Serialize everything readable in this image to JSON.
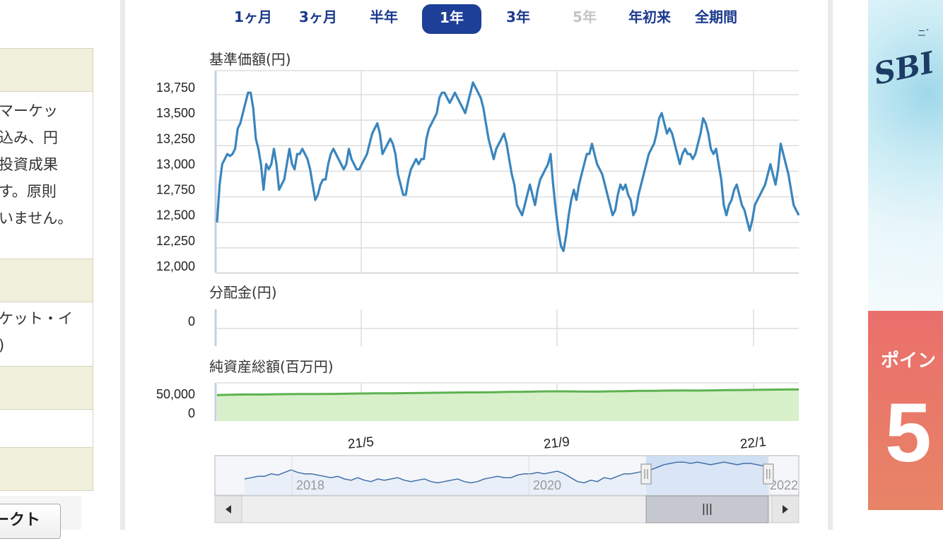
{
  "left_panel": {
    "text_lines": [
      "マーケッ",
      "込み、円",
      "投資成果",
      "す。原則",
      "いません。"
    ],
    "row2_lines": [
      "ケット・イ",
      ")"
    ],
    "button_label": "ークト"
  },
  "periods": [
    {
      "label": "1ヶ月",
      "state": "normal"
    },
    {
      "label": "3ヶ月",
      "state": "normal"
    },
    {
      "label": "半年",
      "state": "normal"
    },
    {
      "label": "1年",
      "state": "active"
    },
    {
      "label": "3年",
      "state": "normal"
    },
    {
      "label": "5年",
      "state": "disabled"
    },
    {
      "label": "年初来",
      "state": "normal"
    },
    {
      "label": "全期間",
      "state": "normal"
    }
  ],
  "sections": {
    "price_title": "基準価額(円)",
    "dividend_title": "分配金(円)",
    "assets_title": "純資産総額(百万円)"
  },
  "chart_data": [
    {
      "type": "line",
      "ylabel": "基準価額(円)",
      "ylim": [
        12000,
        13750
      ],
      "yticks": [
        "13,750",
        "13,500",
        "13,250",
        "13,000",
        "12,750",
        "12,500",
        "12,250",
        "12,000"
      ],
      "x_ticks": [
        "21/5",
        "21/9",
        "22/1"
      ],
      "grid": true,
      "color": "#3a85bd",
      "series": [
        {
          "values": [
            12430,
            12800,
            13000,
            13050,
            13100,
            13080,
            13100,
            13150,
            13350,
            13400,
            13500,
            13600,
            13700,
            13700,
            13550,
            13250,
            13150,
            13000,
            12750,
            13000,
            12950,
            13000,
            13150,
            13000,
            12750,
            12800,
            12850,
            13000,
            13150,
            13000,
            12950,
            13100,
            13100,
            13150,
            13100,
            13050,
            12950,
            12800,
            12650,
            12700,
            12800,
            12850,
            12850,
            13000,
            13100,
            13150,
            13100,
            13050,
            13000,
            12950,
            13000,
            13150,
            13050,
            13000,
            12950,
            12950,
            13000,
            13050,
            13100,
            13200,
            13300,
            13350,
            13400,
            13300,
            13100,
            13150,
            13200,
            13250,
            13200,
            13100,
            12900,
            12800,
            12700,
            12700,
            12850,
            12950,
            13000,
            13050,
            13000,
            13050,
            13050,
            13250,
            13350,
            13400,
            13450,
            13500,
            13650,
            13700,
            13700,
            13650,
            13600,
            13650,
            13700,
            13650,
            13600,
            13550,
            13500,
            13600,
            13700,
            13800,
            13750,
            13700,
            13650,
            13550,
            13400,
            13250,
            13150,
            13050,
            13150,
            13200,
            13250,
            13300,
            13200,
            13050,
            12900,
            12800,
            12600,
            12550,
            12500,
            12600,
            12700,
            12800,
            12700,
            12600,
            12750,
            12850,
            12900,
            12950,
            13000,
            13100,
            12800,
            12550,
            12350,
            12200,
            12150,
            12300,
            12500,
            12650,
            12750,
            12650,
            12800,
            12900,
            13000,
            13100,
            13100,
            13200,
            13100,
            13000,
            12950,
            12900,
            12800,
            12700,
            12600,
            12500,
            12550,
            12700,
            12800,
            12750,
            12800,
            12700,
            12650,
            12500,
            12550,
            12700,
            12800,
            12900,
            13000,
            13100,
            13150,
            13200,
            13300,
            13450,
            13500,
            13400,
            13300,
            13350,
            13300,
            13200,
            13100,
            13000,
            13100,
            13150,
            13100,
            13100,
            13050,
            13100,
            13200,
            13300,
            13450,
            13400,
            13300,
            13150,
            13100,
            13150,
            13000,
            12850,
            12600,
            12500,
            12600,
            12650,
            12750,
            12800,
            12700,
            12600,
            12550,
            12450,
            12350,
            12450,
            12600,
            12650,
            12700,
            12750,
            12800,
            12900,
            13000,
            12900,
            12800,
            12950,
            13200,
            13100,
            13000,
            12900,
            12750,
            12600,
            12550,
            12500
          ]
        }
      ]
    },
    {
      "type": "line",
      "ylabel": "分配金(円)",
      "yticks": [
        "0"
      ],
      "grid": true
    },
    {
      "type": "area",
      "ylabel": "純資産総額(百万円)",
      "yticks": [
        "50,000",
        "0"
      ],
      "ylim": [
        0,
        75000
      ],
      "grid": true,
      "color": "#5db250",
      "fill": "#d7f0c9",
      "series": [
        {
          "values": [
            51000,
            51800,
            52200,
            52100,
            52600,
            52900,
            53200,
            53000,
            53400,
            53800,
            54200,
            54600,
            54500,
            54900,
            55200,
            55500,
            55900,
            56300,
            56200,
            56700,
            57200,
            57500,
            58000,
            58300,
            58400,
            58100,
            57800,
            58300,
            58700,
            59300,
            59500,
            59800,
            60100,
            59900,
            60300,
            60700,
            61000,
            61300,
            61600,
            61900,
            62100
          ]
        }
      ]
    },
    {
      "type": "line",
      "x_ticks": [
        "2018",
        "2020",
        "2022"
      ],
      "navigator": true
    }
  ],
  "navigator_values": [
    62,
    63,
    64,
    64,
    66,
    65,
    67,
    69,
    67,
    66,
    66,
    65,
    64,
    63,
    64,
    62,
    61,
    63,
    61,
    60,
    62,
    61,
    62,
    63,
    61,
    60,
    61,
    62,
    60,
    59,
    60,
    61,
    62,
    60,
    59,
    60,
    62,
    63,
    64,
    63,
    63,
    65,
    66,
    66,
    67,
    66,
    67,
    68,
    66,
    63,
    60,
    59,
    61,
    60,
    63,
    62,
    64,
    66,
    66,
    67,
    68,
    69,
    71,
    73,
    74,
    75,
    75,
    74,
    75,
    74,
    73,
    74,
    75,
    74,
    73,
    74,
    74,
    73,
    72,
    73
  ],
  "navigator_selection": [
    0.74,
    0.95
  ],
  "banner": {
    "logo_text": "SBI",
    "tiny_text": "ニ゛",
    "point_text": "ポイン",
    "big_text": "5"
  }
}
